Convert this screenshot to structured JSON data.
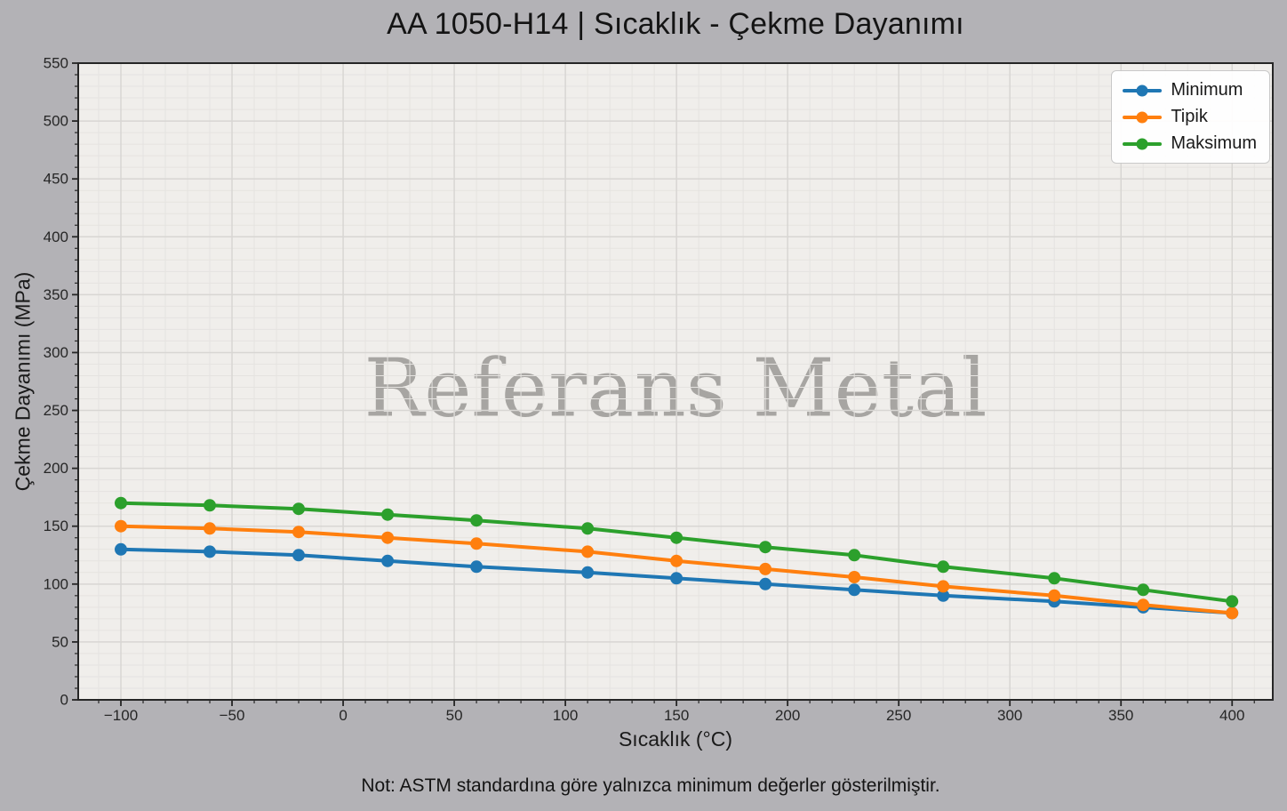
{
  "title": "AA 1050-H14 | Sıcaklık - Çekme Dayanımı",
  "watermark": "Referans Metal",
  "note": "Not: ASTM standardına göre yalnızca minimum değerler gösterilmiştir.",
  "colors": {
    "figure_bg": "#b3b2b6",
    "axes_bg": "#f0eeeb",
    "major_grid": "#d8d6d3",
    "minor_grid": "#e5e3e0",
    "spine": "#262626",
    "tick_label": "#262626",
    "watermark": "#a7a5a2",
    "legend_bg": "#ffffff",
    "series_min": "#1f77b4",
    "series_typ": "#ff7f0e",
    "series_max": "#2ca02c"
  },
  "chart_data": {
    "type": "line",
    "title": "AA 1050-H14 | Sıcaklık - Çekme Dayanımı",
    "xlabel": "Sıcaklık (°C)",
    "ylabel": "Çekme Dayanımı (MPa)",
    "x": [
      -100,
      -60,
      -20,
      20,
      60,
      110,
      150,
      190,
      230,
      270,
      320,
      360,
      400
    ],
    "series": [
      {
        "name": "Minimum",
        "color": "#1f77b4",
        "values": [
          130,
          128,
          125,
          120,
          115,
          110,
          105,
          100,
          95,
          90,
          85,
          80,
          75
        ]
      },
      {
        "name": "Tipik",
        "color": "#ff7f0e",
        "values": [
          150,
          148,
          145,
          140,
          135,
          128,
          120,
          113,
          106,
          98,
          90,
          82,
          75
        ]
      },
      {
        "name": "Maksimum",
        "color": "#2ca02c",
        "values": [
          170,
          168,
          165,
          160,
          155,
          148,
          140,
          132,
          125,
          115,
          105,
          95,
          85
        ]
      }
    ],
    "xlim": [
      -119.2,
      418.3
    ],
    "ylim": [
      0,
      550
    ],
    "x_ticks": [
      -100,
      -50,
      0,
      50,
      100,
      150,
      200,
      250,
      300,
      350,
      400
    ],
    "y_ticks": [
      0,
      50,
      100,
      150,
      200,
      250,
      300,
      350,
      400,
      450,
      500,
      550
    ],
    "minor_step_x": 10,
    "minor_step_y": 10,
    "grid": true,
    "legend_position": "top-right",
    "marker": "circle",
    "line_width": 4,
    "marker_radius": 7
  }
}
